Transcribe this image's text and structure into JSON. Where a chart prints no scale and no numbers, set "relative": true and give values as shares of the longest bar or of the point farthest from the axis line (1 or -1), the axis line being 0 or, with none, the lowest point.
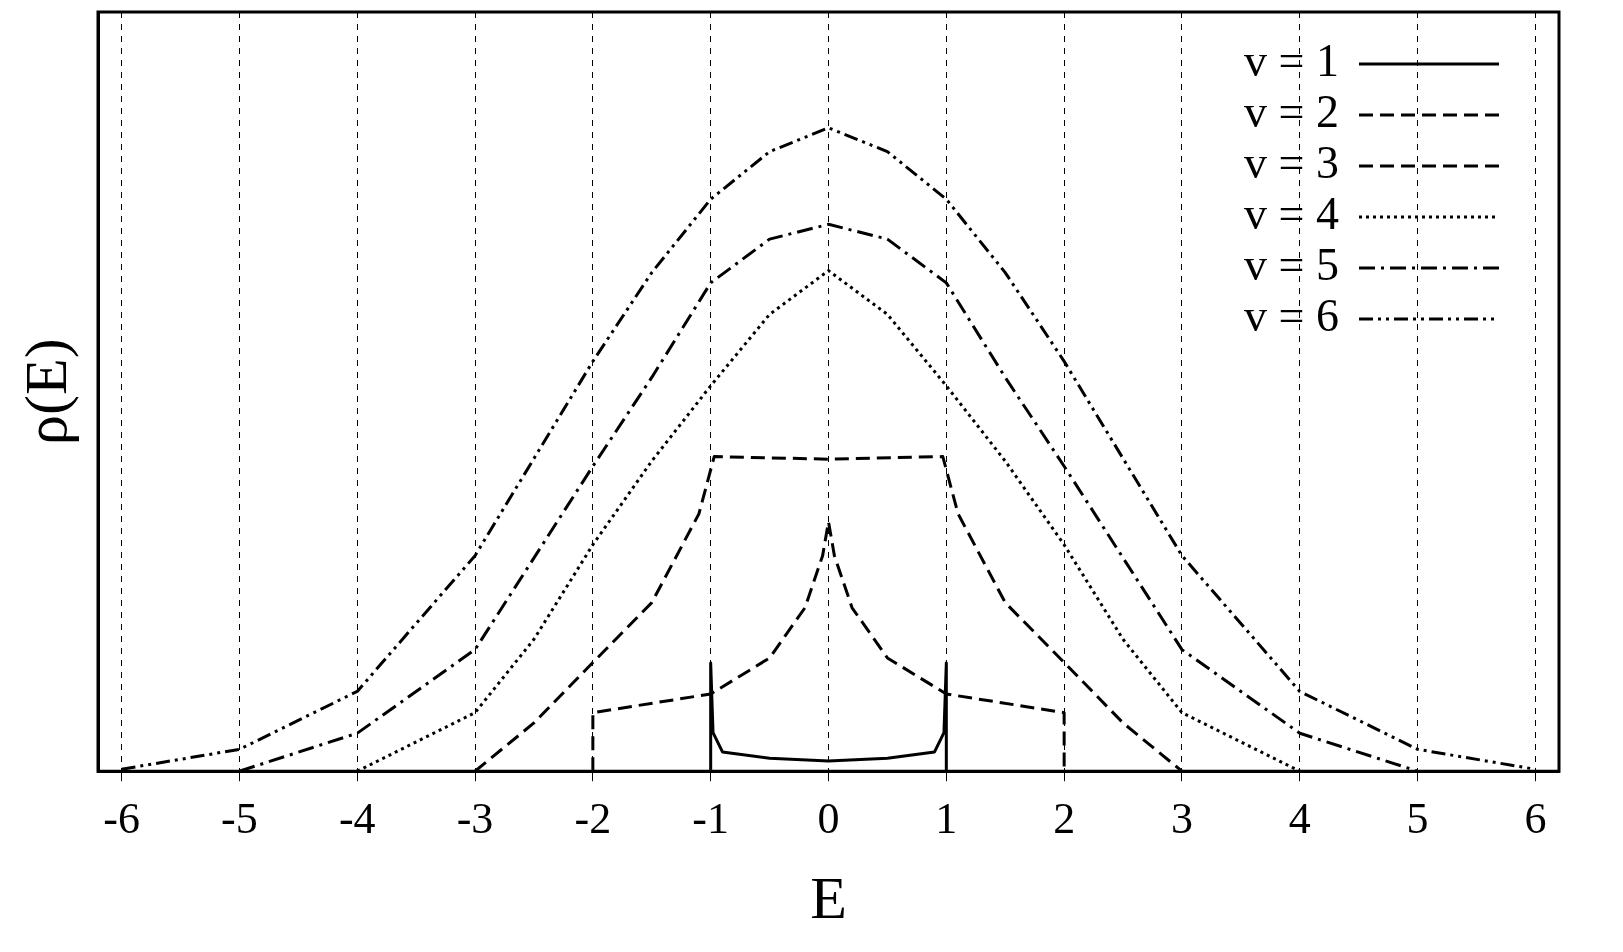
{
  "chart_data": {
    "type": "line",
    "xlabel": "E",
    "ylabel": "ρ(E)",
    "relative": true,
    "grid": "x",
    "legend": "top right",
    "tick_labels": "x",
    "marker": "none",
    "xlim": [
      -6.2,
      6.2
    ],
    "xticks": [
      -6,
      -5,
      -4,
      -3,
      -2,
      -1,
      0,
      1,
      2,
      3,
      4,
      5,
      6
    ],
    "series": [
      {
        "name": "v = 1",
        "color": "#000000",
        "line_style": "solid",
        "x": [
          -1,
          -1,
          -0.98,
          -0.9,
          -0.5,
          0,
          0.5,
          0.9,
          0.98,
          1,
          1
        ],
        "values": [
          0,
          0.168,
          0.06,
          0.03,
          0.02,
          0.016,
          0.02,
          0.03,
          0.06,
          0.168,
          0
        ]
      },
      {
        "name": "v = 2",
        "color": "#000000",
        "line_style": "dashed",
        "x": [
          -2,
          -2,
          -1,
          -0.5,
          -0.2,
          -0.05,
          0,
          0.05,
          0.2,
          0.5,
          1,
          2,
          2
        ],
        "values": [
          0,
          0.091,
          0.12,
          0.176,
          0.254,
          0.335,
          0.388,
          0.335,
          0.254,
          0.176,
          0.12,
          0.091,
          0
        ]
      },
      {
        "name": "v = 3",
        "color": "#000000",
        "line_style": "dashed",
        "x": [
          -3,
          -2.5,
          -2,
          -1.5,
          -1.1,
          -0.97,
          0,
          0.97,
          1.1,
          1.5,
          2,
          2.5,
          3
        ],
        "values": [
          0,
          0.075,
          0.169,
          0.262,
          0.4,
          0.489,
          0.485,
          0.489,
          0.4,
          0.262,
          0.169,
          0.075,
          0
        ]
      },
      {
        "name": "v = 4",
        "color": "#000000",
        "line_style": "dotted",
        "x": [
          -4,
          -3,
          -2.5,
          -2,
          -1.5,
          -1,
          -0.5,
          0,
          0.5,
          1,
          1.5,
          2,
          2.5,
          3,
          4
        ],
        "values": [
          0,
          0.091,
          0.205,
          0.352,
          0.482,
          0.599,
          0.71,
          0.778,
          0.71,
          0.599,
          0.482,
          0.352,
          0.205,
          0.091,
          0
        ]
      },
      {
        "name": "v = 5",
        "color": "#000000",
        "line_style": "dashdot",
        "x": [
          -5,
          -4,
          -3,
          -2,
          -1.5,
          -1,
          -0.5,
          0,
          0.5,
          1,
          1.5,
          2,
          3,
          4,
          5
        ],
        "values": [
          0,
          0.059,
          0.189,
          0.474,
          0.612,
          0.759,
          0.827,
          0.85,
          0.827,
          0.759,
          0.612,
          0.474,
          0.189,
          0.059,
          0
        ]
      },
      {
        "name": "v = 6",
        "color": "#000000",
        "line_style": "dashdotdot",
        "x": [
          -6,
          -5,
          -4,
          -3,
          -2,
          -1.5,
          -1,
          -0.5,
          0,
          0.5,
          1,
          1.5,
          2,
          3,
          4,
          5,
          6
        ],
        "values": [
          0.003,
          0.034,
          0.124,
          0.335,
          0.637,
          0.775,
          0.889,
          0.963,
          1,
          0.963,
          0.889,
          0.775,
          0.637,
          0.335,
          0.124,
          0.034,
          0.003
        ]
      }
    ]
  }
}
